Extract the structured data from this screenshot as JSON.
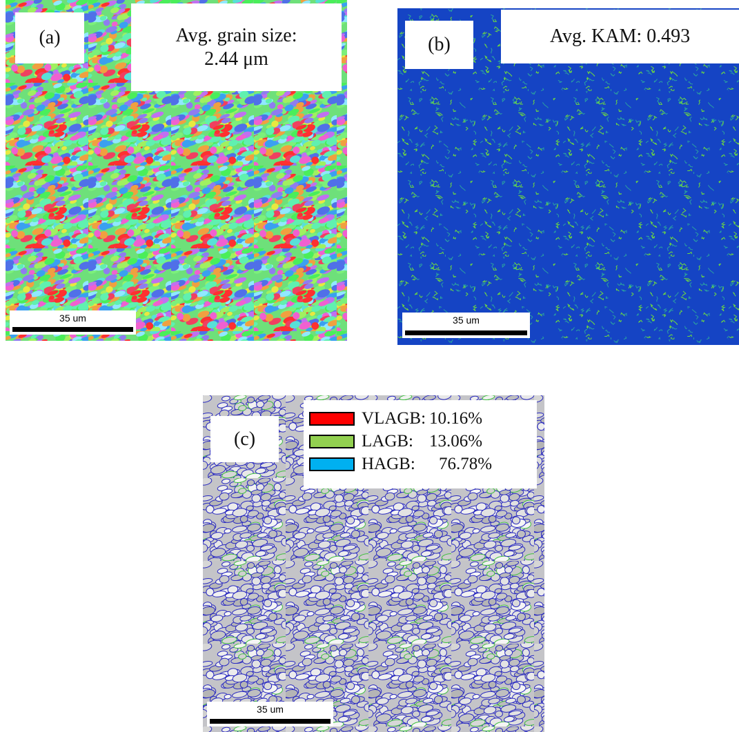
{
  "panels": [
    {
      "label": "(a)",
      "annotation": [
        "Avg. grain size:",
        "2.44 μm"
      ],
      "scale_bar": "35 um"
    },
    {
      "label": "(b)",
      "annotation": [
        "Avg. KAM: 0.493"
      ],
      "scale_bar": "35 um"
    },
    {
      "label": "(c)",
      "legend": [
        {
          "name": "VLAGB:",
          "value": "10.16%"
        },
        {
          "name": "LAGB:",
          "value": "13.06%"
        },
        {
          "name": "HAGB:",
          "value": "76.78%"
        }
      ],
      "scale_bar": "35 um"
    }
  ]
}
